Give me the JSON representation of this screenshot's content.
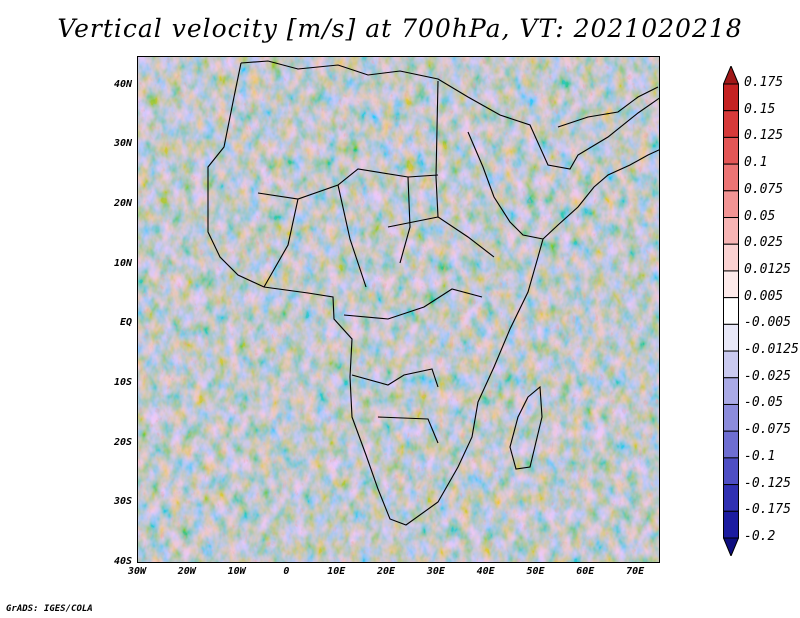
{
  "title": "Vertical velocity [m/s] at 700hPa, VT: 2021020218",
  "footer": "GrADS: IGES/COLA",
  "map": {
    "lat_range": [
      -40,
      45
    ],
    "lon_range": [
      -30,
      75
    ],
    "lat_ticks": [
      {
        "label": "40N",
        "value": 40
      },
      {
        "label": "30N",
        "value": 30
      },
      {
        "label": "20N",
        "value": 20
      },
      {
        "label": "10N",
        "value": 10
      },
      {
        "label": "EQ",
        "value": 0
      },
      {
        "label": "10S",
        "value": -10
      },
      {
        "label": "20S",
        "value": -20
      },
      {
        "label": "30S",
        "value": -30
      },
      {
        "label": "40S",
        "value": -40
      }
    ],
    "lon_ticks": [
      {
        "label": "30W",
        "value": -30
      },
      {
        "label": "20W",
        "value": -20
      },
      {
        "label": "10W",
        "value": -10
      },
      {
        "label": "0",
        "value": 0
      },
      {
        "label": "10E",
        "value": 10
      },
      {
        "label": "20E",
        "value": 20
      },
      {
        "label": "30E",
        "value": 30
      },
      {
        "label": "40E",
        "value": 40
      },
      {
        "label": "50E",
        "value": 50
      },
      {
        "label": "60E",
        "value": 60
      },
      {
        "label": "70E",
        "value": 70
      }
    ]
  },
  "colorbar": {
    "labels": [
      "0.175",
      "0.15",
      "0.125",
      "0.1",
      "0.075",
      "0.05",
      "0.025",
      "0.0125",
      "0.005",
      "-0.005",
      "-0.0125",
      "-0.025",
      "-0.05",
      "-0.075",
      "-0.1",
      "-0.125",
      "-0.175",
      "-0.2"
    ],
    "colors": [
      "#a01818",
      "#c42222",
      "#d63a3a",
      "#e35656",
      "#ec7474",
      "#f29494",
      "#f7b4b4",
      "#fbd2d2",
      "#fdeaea",
      "#ffffff",
      "#e8e8f8",
      "#cacaf0",
      "#aaaae6",
      "#8c8cdc",
      "#6e6ed2",
      "#4e4ec4",
      "#3030b2",
      "#1c1ca0",
      "#0e0e80"
    ]
  }
}
